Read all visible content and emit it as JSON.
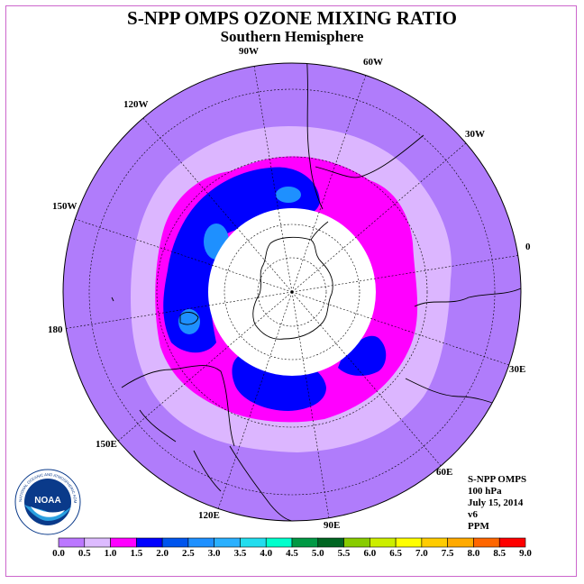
{
  "title": "S-NPP OMPS OZONE MIXING RATIO",
  "subtitle": "Southern Hemisphere",
  "longitude_labels": [
    {
      "text": "90W",
      "lon": -90
    },
    {
      "text": "60W",
      "lon": -60
    },
    {
      "text": "30W",
      "lon": -30
    },
    {
      "text": "0",
      "lon": 0
    },
    {
      "text": "30E",
      "lon": 30
    },
    {
      "text": "60E",
      "lon": 60
    },
    {
      "text": "90E",
      "lon": 90
    },
    {
      "text": "120E",
      "lon": 120
    },
    {
      "text": "150E",
      "lon": 150
    },
    {
      "text": "180",
      "lon": 180
    },
    {
      "text": "150W",
      "lon": -150
    },
    {
      "text": "120W",
      "lon": -120
    }
  ],
  "info": {
    "instrument": "S-NPP OMPS",
    "level": "100 hPa",
    "date": "July 15, 2014",
    "version": "v6",
    "units": "PPM"
  },
  "logo": {
    "text": "NOAA",
    "ring_text": "NATIONAL OCEANIC AND ATMOSPHERIC ADMINISTRATION"
  },
  "colorbar": {
    "ticks": [
      "0.0",
      "0.5",
      "1.0",
      "1.5",
      "2.0",
      "2.5",
      "3.0",
      "3.5",
      "4.0",
      "4.5",
      "5.0",
      "5.5",
      "6.0",
      "6.5",
      "7.0",
      "7.5",
      "8.0",
      "8.5",
      "9.0"
    ],
    "colors": [
      "#bb77ff",
      "#ddbbff",
      "#ff00ff",
      "#0000ff",
      "#0055ee",
      "#1e90ff",
      "#2ab0ff",
      "#22ddee",
      "#00ffcc",
      "#009944",
      "#006622",
      "#88cc00",
      "#ccee00",
      "#ffff00",
      "#ffcc00",
      "#ffaa00",
      "#ff6600",
      "#ff0000",
      "#aa6633"
    ]
  },
  "map_colors": {
    "background_disk": "#b07cfb",
    "band_05": "#dcb6ff",
    "band_10": "#ff00ff",
    "band_15": "#0000ff",
    "band_20": "#1e90ff",
    "polar_night": "#ffffff"
  }
}
